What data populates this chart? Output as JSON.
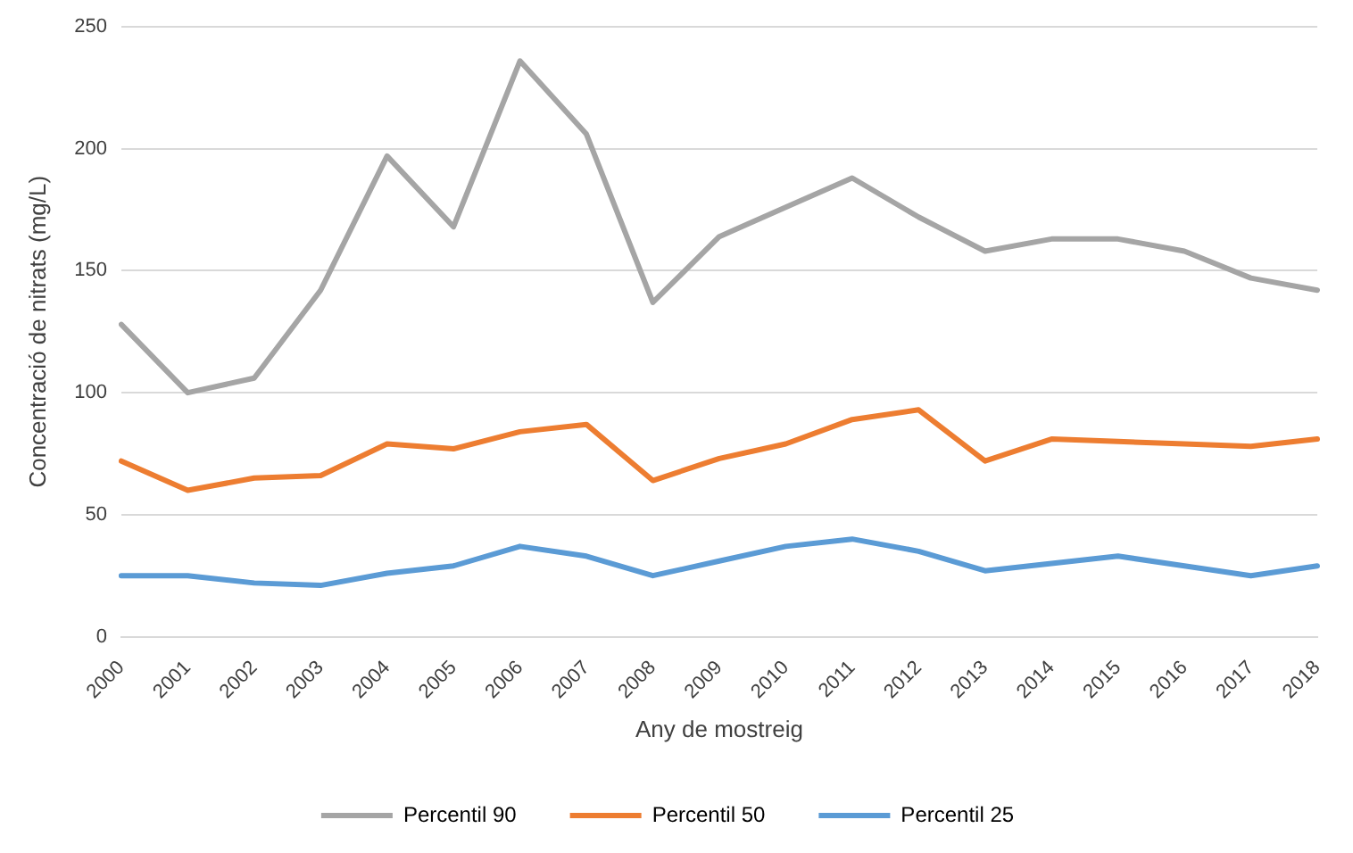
{
  "chart_data": {
    "type": "line",
    "xlabel": "Any de mostreig",
    "ylabel": "Concentració de nitrats (mg/L)",
    "categories": [
      "2000",
      "2001",
      "2002",
      "2003",
      "2004",
      "2005",
      "2006",
      "2007",
      "2008",
      "2009",
      "2010",
      "2011",
      "2012",
      "2013",
      "2014",
      "2015",
      "2016",
      "2017",
      "2018"
    ],
    "series": [
      {
        "name": "Percentil 90",
        "color": "#a5a5a5",
        "values": [
          128,
          100,
          106,
          142,
          197,
          168,
          236,
          206,
          137,
          164,
          176,
          188,
          172,
          158,
          163,
          163,
          158,
          147,
          142
        ]
      },
      {
        "name": "Percentil 50",
        "color": "#ed7d31",
        "values": [
          72,
          60,
          65,
          66,
          79,
          77,
          84,
          87,
          64,
          73,
          79,
          89,
          93,
          72,
          81,
          80,
          79,
          78,
          81
        ]
      },
      {
        "name": "Percentil 25",
        "color": "#5b9bd5",
        "values": [
          25,
          25,
          22,
          21,
          26,
          29,
          37,
          33,
          25,
          31,
          37,
          40,
          35,
          27,
          30,
          33,
          29,
          25,
          29
        ]
      }
    ],
    "ylim": [
      0,
      250
    ],
    "yticks": [
      0,
      50,
      100,
      150,
      200,
      250
    ],
    "grid": "y",
    "legend": "bottom",
    "marker": "none",
    "line_style": "solid"
  }
}
